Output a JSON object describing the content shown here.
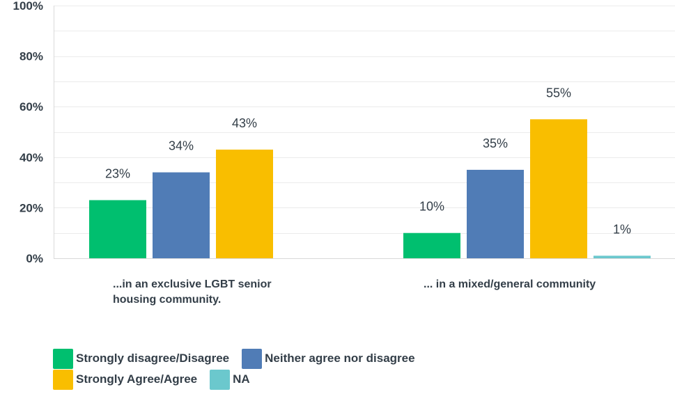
{
  "chart_data": {
    "type": "bar",
    "title": "",
    "xlabel": "",
    "ylabel": "",
    "ylim": [
      0,
      100
    ],
    "y_ticks": [
      "0%",
      "20%",
      "40%",
      "60%",
      "80%",
      "100%"
    ],
    "y_tick_values": [
      0,
      20,
      40,
      60,
      80,
      100
    ],
    "grid": true,
    "categories": [
      "...in an exclusive LGBT senior housing community.",
      "... in a mixed/general community"
    ],
    "series": [
      {
        "name": "Strongly disagree/Disagree",
        "color": "#00bf6f",
        "values": [
          23,
          10
        ],
        "labels": [
          "23%",
          "10%"
        ]
      },
      {
        "name": "Neither agree nor disagree",
        "color": "#507cb6",
        "values": [
          34,
          35
        ],
        "labels": [
          "34%",
          "35%"
        ]
      },
      {
        "name": "Strongly Agree/Agree",
        "color": "#f9be00",
        "values": [
          43,
          55
        ],
        "labels": [
          "43%",
          "55%"
        ]
      },
      {
        "name": "NA",
        "color": "#6bc8cd",
        "values": [
          0,
          1
        ],
        "labels": [
          "",
          "1%"
        ]
      }
    ],
    "legend_position": "bottom-left"
  }
}
